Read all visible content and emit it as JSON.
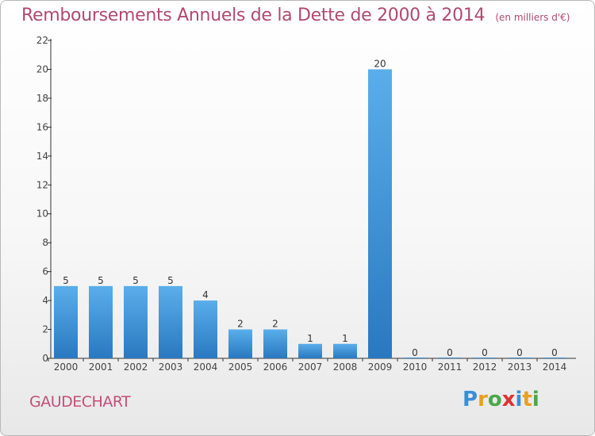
{
  "title": "Remboursements Annuels de la Dette de 2000 à 2014",
  "subtitle": "(en milliers d'€)",
  "commune": "GAUDECHART",
  "logo": {
    "text": "Proxiti",
    "letter_colors": [
      "#3a8ed8",
      "#e8a020",
      "#4aa84a",
      "#e03030",
      "#3a8ed8",
      "#e8a020",
      "#4aa84a"
    ]
  },
  "colors": {
    "title": "#b04a6e",
    "bar_light": "#5aaeea",
    "bar_dark": "#2a78c0",
    "axis": "#333333",
    "grid": "#cccccc"
  },
  "chart_data": {
    "type": "bar",
    "title": "Remboursements Annuels de la Dette de 2000 à 2014",
    "subtitle": "(en milliers d'€)",
    "categories": [
      "2000",
      "2001",
      "2002",
      "2003",
      "2004",
      "2005",
      "2006",
      "2007",
      "2008",
      "2009",
      "2010",
      "2011",
      "2012",
      "2013",
      "2014"
    ],
    "values": [
      5,
      5,
      5,
      5,
      4,
      2,
      2,
      1,
      1,
      20,
      0,
      0,
      0,
      0,
      0
    ],
    "data_labels": [
      "5",
      "5",
      "5",
      "5",
      "4",
      "2",
      "2",
      "1",
      "1",
      "20",
      "0",
      "0",
      "0",
      "0",
      "0"
    ],
    "ylim": [
      0,
      22
    ],
    "yticks": [
      0,
      2,
      4,
      6,
      8,
      10,
      12,
      14,
      16,
      18,
      20,
      22
    ],
    "grid": false,
    "legend": "none"
  }
}
